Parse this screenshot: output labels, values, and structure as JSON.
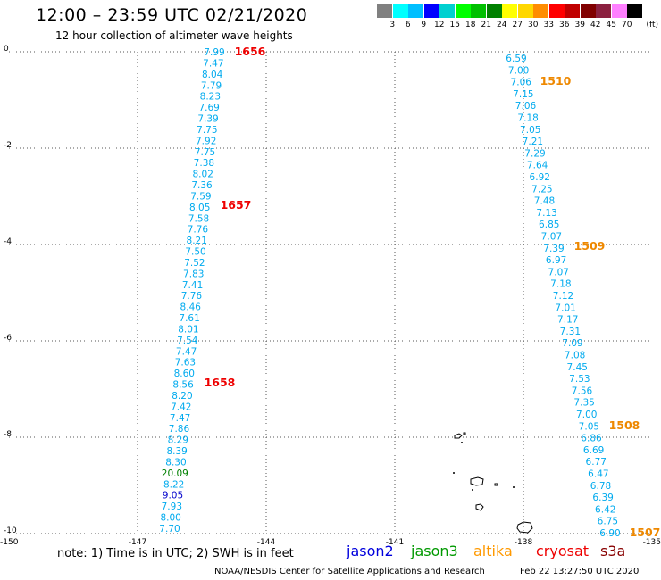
{
  "header": {
    "title": "12:00 – 23:59 UTC 02/21/2020",
    "subtitle": "12 hour collection of altimeter wave heights"
  },
  "legend": {
    "labels": [
      "3",
      "6",
      "9",
      "12",
      "15",
      "18",
      "21",
      "24",
      "27",
      "30",
      "33",
      "36",
      "39",
      "42",
      "45",
      "70"
    ],
    "unit": "(ft)",
    "colors": [
      "#808080",
      "#00ffff",
      "#00bfff",
      "#0000ff",
      "#00d0d0",
      "#00ff00",
      "#00c000",
      "#008000",
      "#ffff00",
      "#ffd700",
      "#ff8c00",
      "#ff0000",
      "#c00000",
      "#800000",
      "#8b2040",
      "#ff80ff",
      "#000000"
    ]
  },
  "map": {
    "lat_labels": [
      "0",
      "-2",
      "-4",
      "-6",
      "-8",
      "-10"
    ],
    "lon_labels": [
      "-150",
      "-147",
      "-144",
      "-141",
      "-138",
      "-135"
    ],
    "track1": {
      "values": [
        "7.99",
        "7.47",
        "8.04",
        "7.79",
        "8.23",
        "7.69",
        "7.39",
        "7.75",
        "7.92",
        "7.75",
        "7.38",
        "8.02",
        "7.36",
        "7.59",
        "8.05",
        "7.58",
        "7.76",
        "8.21",
        "7.50",
        "7.52",
        "7.83",
        "7.41",
        "7.76",
        "8.46",
        "7.61",
        "8.01",
        "7.54",
        "7.47",
        "7.63",
        "8.60",
        "8.56",
        "8.20",
        "7.42",
        "7.47",
        "7.86",
        "8.29",
        "8.39",
        "8.30",
        "20.09",
        "8.22",
        "9.05",
        "7.93",
        "8.00",
        "7.70"
      ],
      "colors": [
        "#00aaee",
        "#00aaee",
        "#00aaee",
        "#00aaee",
        "#00aaee",
        "#00aaee",
        "#00aaee",
        "#00aaee",
        "#00aaee",
        "#00aaee",
        "#00aaee",
        "#00aaee",
        "#00aaee",
        "#00aaee",
        "#00aaee",
        "#00aaee",
        "#00aaee",
        "#00aaee",
        "#00aaee",
        "#00aaee",
        "#00aaee",
        "#00aaee",
        "#00aaee",
        "#00aaee",
        "#00aaee",
        "#00aaee",
        "#00aaee",
        "#00aaee",
        "#00aaee",
        "#00aaee",
        "#00aaee",
        "#00aaee",
        "#00aaee",
        "#00aaee",
        "#00aaee",
        "#00aaee",
        "#00aaee",
        "#00aaee",
        "#008000",
        "#00aaee",
        "#0000cc",
        "#00aaee",
        "#00aaee",
        "#00aaee"
      ],
      "times": [
        "1656",
        "1657",
        "1658"
      ],
      "time_color": "#ee0000"
    },
    "track2": {
      "values": [
        "6.59",
        "7.00",
        "7.06",
        "7.15",
        "7.06",
        "7.18",
        "7.05",
        "7.21",
        "7.29",
        "7.64",
        "6.92",
        "7.25",
        "7.48",
        "7.13",
        "6.85",
        "7.07",
        "7.39",
        "6.97",
        "7.07",
        "7.18",
        "7.12",
        "7.01",
        "7.17",
        "7.31",
        "7.09",
        "7.08",
        "7.45",
        "7.53",
        "7.56",
        "7.35",
        "7.00",
        "7.05",
        "6.86",
        "6.69",
        "6.77",
        "6.47",
        "6.78",
        "6.39",
        "6.42",
        "6.75",
        "6.90"
      ],
      "color": "#00aaee",
      "times": [
        "1510",
        "1509",
        "1508",
        "1507"
      ],
      "time_color": "#ee8800"
    }
  },
  "note": "note:  1) Time is in UTC;  2) SWH is in feet",
  "satellites": [
    {
      "name": "jason2",
      "color": "#0000dd"
    },
    {
      "name": "jason3",
      "color": "#009900"
    },
    {
      "name": "altika",
      "color": "#ff9900"
    },
    {
      "name": "cryosat",
      "color": "#ee0000"
    },
    {
      "name": "s3a",
      "color": "#880000"
    }
  ],
  "footer": {
    "credit": "NOAA/NESDIS Center for Satellite Applications and Research",
    "timestamp": "Feb 22 13:27:50 UTC 2020"
  }
}
